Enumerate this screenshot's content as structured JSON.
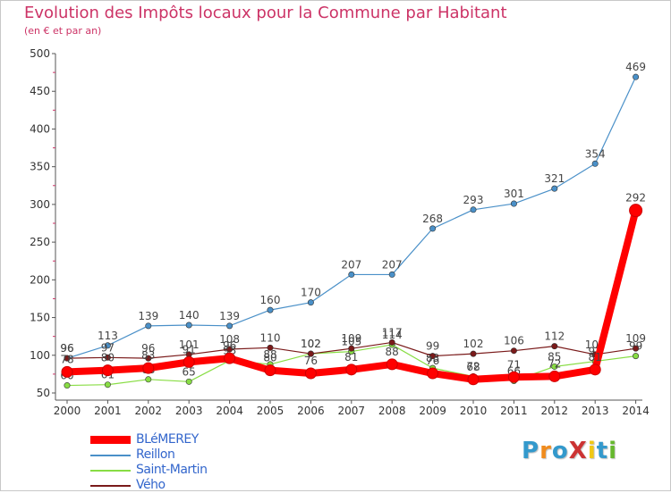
{
  "header": {
    "title": "Evolution des Impôts locaux pour la Commune par Habitant",
    "subtitle": "(en € et par an)"
  },
  "logo": {
    "text": "ProXiti",
    "letters": [
      "P",
      "r",
      "o",
      "X",
      "i",
      "t",
      "i"
    ],
    "colors": [
      "#3399cc",
      "#f08c1e",
      "#3399cc",
      "#cc3333",
      "#f0c814",
      "#3399cc",
      "#66b82e"
    ]
  },
  "chart_data": {
    "type": "line",
    "categories": [
      "2000",
      "2001",
      "2002",
      "2003",
      "2004",
      "2005",
      "2006",
      "2007",
      "2008",
      "2009",
      "2010",
      "2011",
      "2012",
      "2013",
      "2014"
    ],
    "ylim": [
      50,
      500
    ],
    "yticks": [
      50,
      100,
      150,
      200,
      250,
      300,
      350,
      400,
      450,
      500
    ],
    "grid": false,
    "legend_position": "bottom-left",
    "series": [
      {
        "name": "BLéMEREY",
        "color": "#ff0000",
        "values": [
          78,
          80,
          83,
          91,
          96,
          80,
          76,
          81,
          88,
          76,
          68,
          71,
          72,
          81,
          292
        ]
      },
      {
        "name": "Reillon",
        "color": "#4a90c8",
        "values": [
          96,
          113,
          139,
          140,
          139,
          160,
          170,
          207,
          207,
          268,
          293,
          301,
          321,
          354,
          469
        ]
      },
      {
        "name": "Saint-Martin",
        "color": "#88dd44",
        "values": [
          60,
          61,
          68,
          65,
          93,
          88,
          102,
          105,
          114,
          83,
          72,
          66,
          85,
          92,
          99
        ]
      },
      {
        "name": "Vého",
        "color": "#7a1a1a",
        "values": [
          96,
          97,
          96,
          101,
          108,
          110,
          102,
          109,
          117,
          99,
          102,
          106,
          112,
          101,
          109
        ]
      }
    ]
  }
}
